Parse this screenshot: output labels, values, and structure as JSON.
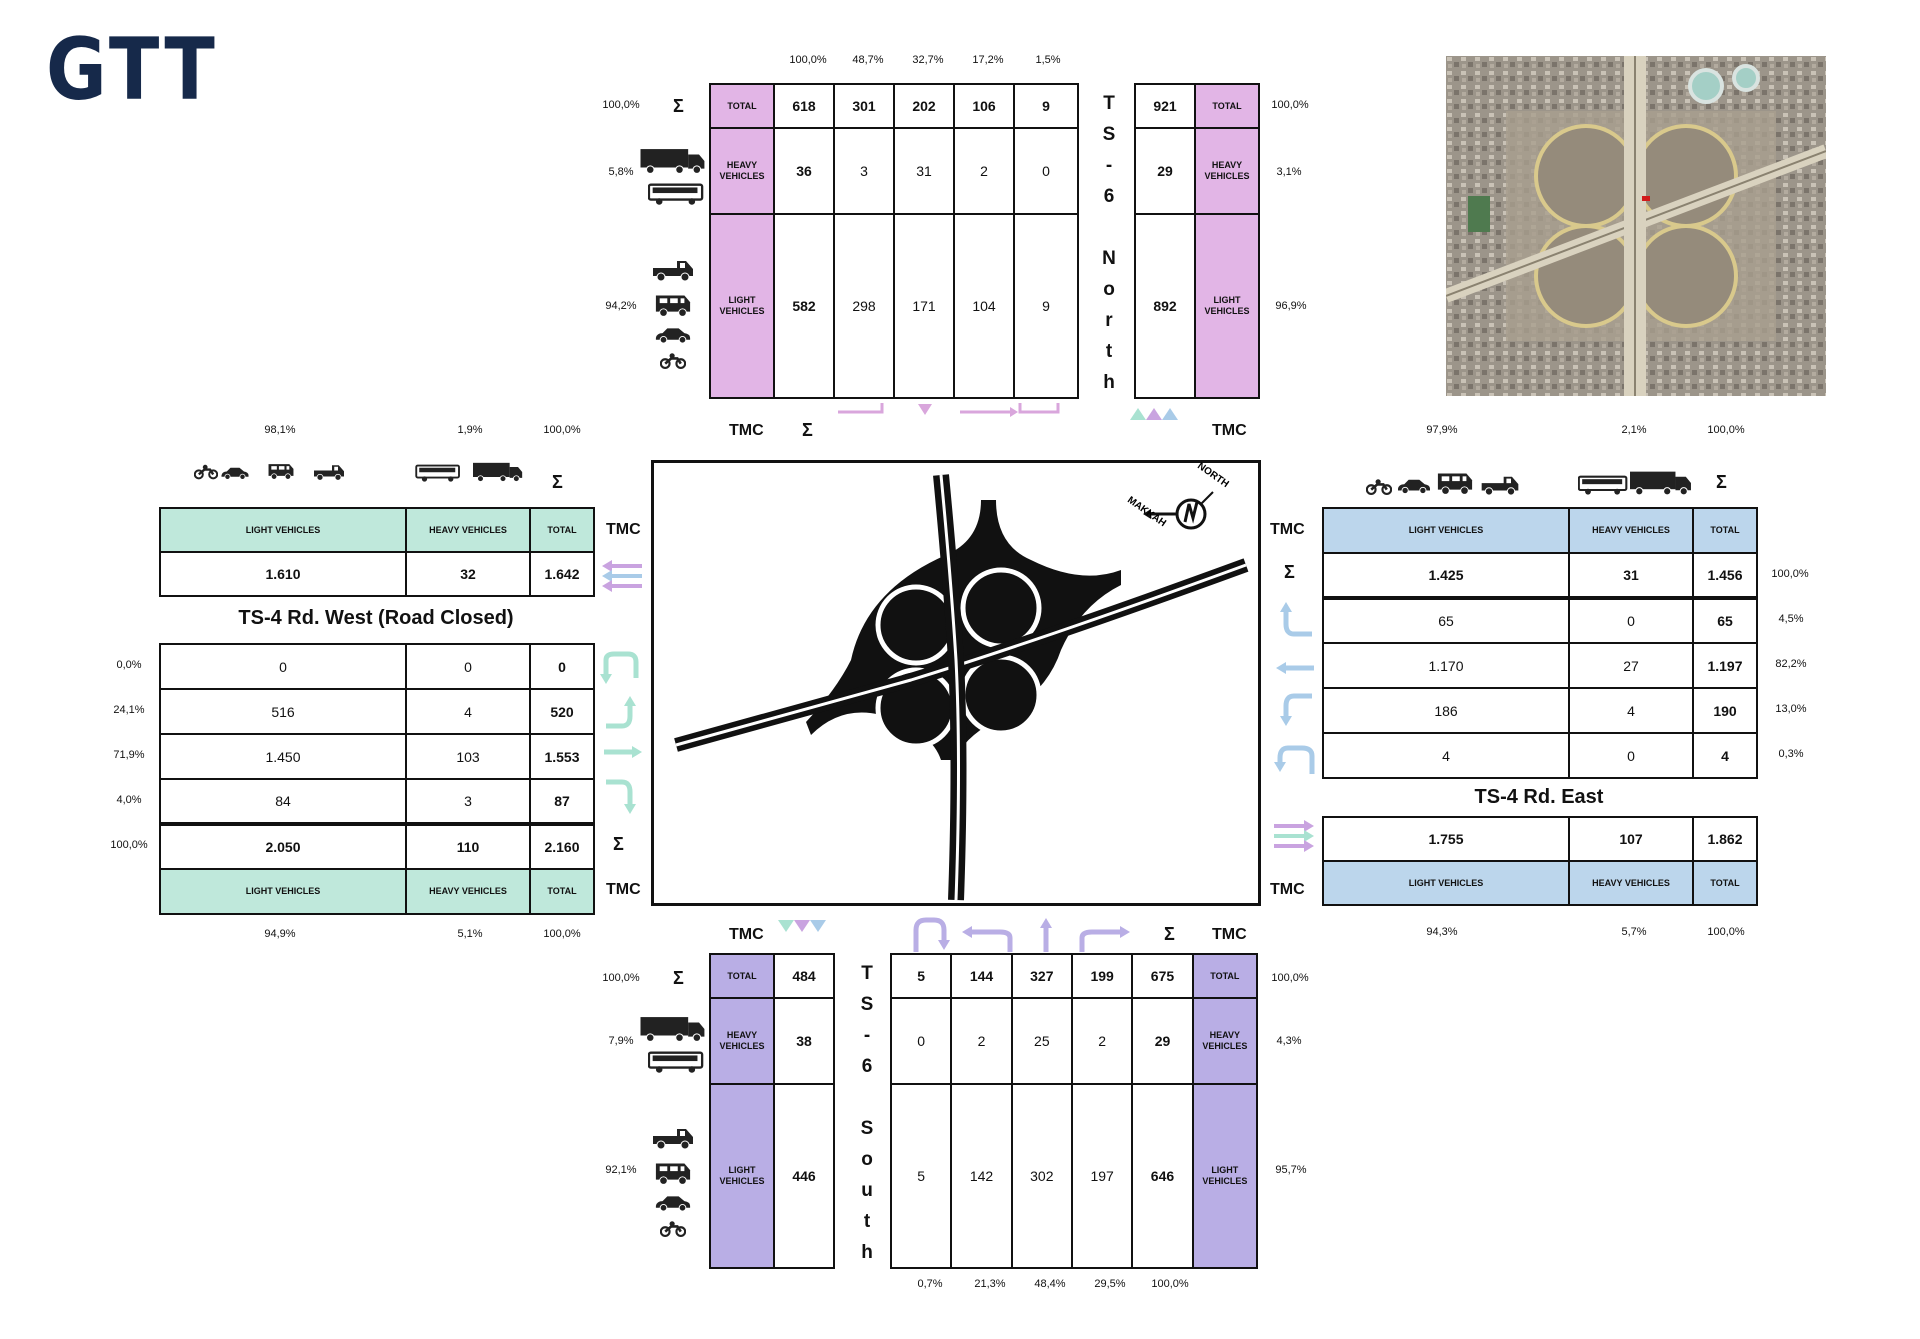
{
  "logo": "GTT",
  "tmc": "TMC",
  "sigma": "Σ",
  "hdr": {
    "total": "TOTAL",
    "heavy": "HEAVY VEHICLES",
    "light": "LIGHT VEHICLES"
  },
  "north": {
    "name_letters": [
      "T",
      "S",
      "-",
      "6",
      "",
      "N",
      "o",
      "r",
      "t",
      "h"
    ],
    "col_pcts": [
      "100,0%",
      "48,7%",
      "32,7%",
      "17,2%",
      "1,5%"
    ],
    "row_pcts": [
      "100,0%",
      "5,8%",
      "94,2%"
    ],
    "rows": [
      [
        "618",
        "301",
        "202",
        "106",
        "9"
      ],
      [
        "36",
        "3",
        "31",
        "2",
        "0"
      ],
      [
        "582",
        "298",
        "171",
        "104",
        "9"
      ]
    ],
    "in": [
      "921",
      "29",
      "892"
    ],
    "in_pcts": [
      "100,0%",
      "3,1%",
      "96,9%"
    ]
  },
  "south": {
    "name_letters": [
      "T",
      "S",
      "-",
      "6",
      "",
      "S",
      "o",
      "u",
      "t",
      "h"
    ],
    "row_pcts": [
      "100,0%",
      "7,9%",
      "92,1%"
    ],
    "in": [
      "484",
      "38",
      "446"
    ],
    "rows": [
      [
        "5",
        "144",
        "327",
        "199",
        "675"
      ],
      [
        "0",
        "2",
        "25",
        "2",
        "29"
      ],
      [
        "5",
        "142",
        "302",
        "197",
        "646"
      ]
    ],
    "out_pcts": [
      "100,0%",
      "4,3%",
      "95,7%"
    ],
    "col_pcts": [
      "0,7%",
      "21,3%",
      "48,4%",
      "29,5%",
      "100,0%"
    ]
  },
  "west": {
    "title": "TS-4 Rd. West (Road Closed)",
    "top_pcts": [
      "98,1%",
      "1,9%",
      "100,0%"
    ],
    "in_row": [
      "1.610",
      "32",
      "1.642"
    ],
    "rows": [
      [
        "0",
        "0",
        "0"
      ],
      [
        "516",
        "4",
        "520"
      ],
      [
        "1.450",
        "103",
        "1.553"
      ],
      [
        "84",
        "3",
        "87"
      ],
      [
        "2.050",
        "110",
        "2.160"
      ]
    ],
    "row_pcts": [
      "0,0%",
      "24,1%",
      "71,9%",
      "4,0%",
      "100,0%"
    ],
    "bottom_pcts": [
      "94,9%",
      "5,1%",
      "100,0%"
    ]
  },
  "east": {
    "title": "TS-4 Rd. East",
    "top_pcts": [
      "97,9%",
      "2,1%",
      "100,0%"
    ],
    "rows": [
      [
        "1.425",
        "31",
        "1.456"
      ],
      [
        "65",
        "0",
        "65"
      ],
      [
        "1.170",
        "27",
        "1.197"
      ],
      [
        "186",
        "4",
        "190"
      ],
      [
        "4",
        "0",
        "4"
      ]
    ],
    "row_pcts": [
      "100,0%",
      "4,5%",
      "82,2%",
      "13,0%",
      "0,3%"
    ],
    "in_row": [
      "1.755",
      "107",
      "1.862"
    ],
    "bottom_pcts": [
      "94,3%",
      "5,7%",
      "100,0%"
    ]
  },
  "compass": {
    "north": "NORTH",
    "makkah": "MAKKAH"
  },
  "colors": {
    "north": "#e2b5e6",
    "south": "#b9aee5",
    "west": "#bfe8db",
    "east": "#bcd6ec",
    "logo": "#16294a"
  }
}
